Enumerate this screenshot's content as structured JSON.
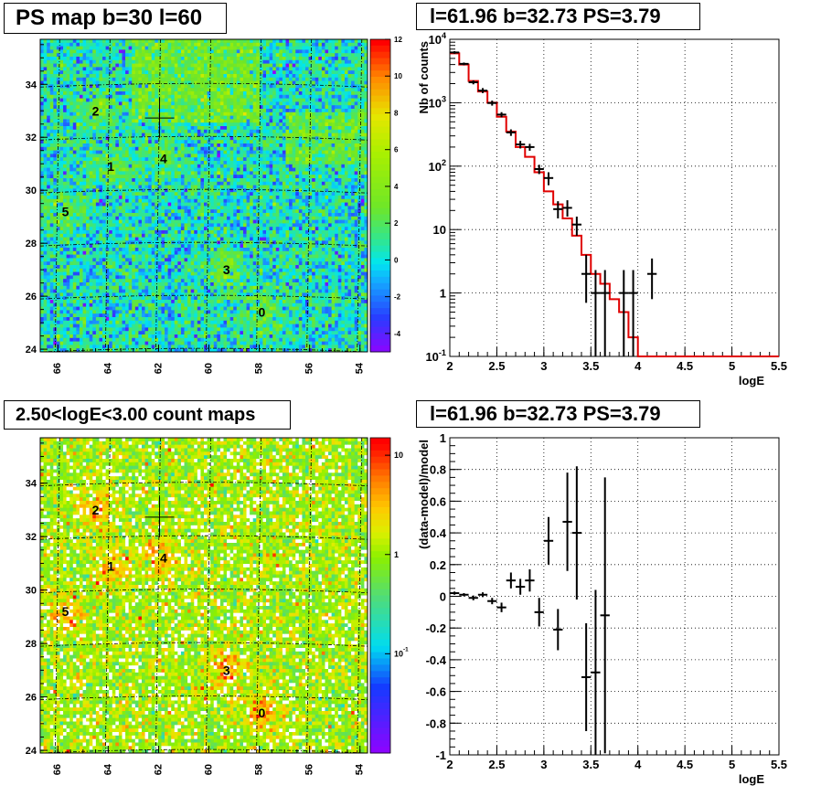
{
  "panels": {
    "ps_map": {
      "title": "PS map b=30 l=60"
    },
    "spectrum": {
      "title": "l=61.96 b=32.73 PS=3.79"
    },
    "count_map": {
      "title": "2.50<logE<3.00 count maps"
    },
    "residual": {
      "title": "l=61.96 b=32.73 PS=3.79"
    }
  },
  "chart_data": [
    {
      "type": "heatmap",
      "title": "PS map b=30 l=60",
      "x_ticks": [
        "66",
        "64",
        "62",
        "60",
        "58",
        "56",
        "54"
      ],
      "y_ticks": [
        "24",
        "26",
        "28",
        "30",
        "32",
        "34"
      ],
      "colorbar_ticks": [
        "12",
        "10",
        "8",
        "6",
        "4",
        "2",
        "0",
        "-2",
        "-4"
      ],
      "colorbar_range": [
        -5,
        12
      ],
      "sources": [
        {
          "label": "0",
          "l": 57.9,
          "b": 25.4
        },
        {
          "label": "1",
          "l": 63.9,
          "b": 30.9
        },
        {
          "label": "2",
          "l": 64.5,
          "b": 33.0
        },
        {
          "label": "3",
          "l": 59.3,
          "b": 27.0
        },
        {
          "label": "4",
          "l": 61.8,
          "b": 31.2
        },
        {
          "label": "5",
          "l": 65.7,
          "b": 29.2
        }
      ],
      "marker": {
        "l": 61.96,
        "b": 32.73
      }
    },
    {
      "type": "line",
      "title": "l=61.96 b=32.73 PS=3.79",
      "xlabel": "logE",
      "ylabel": "Nb of counts",
      "xlim": [
        2,
        5.5
      ],
      "ylim_log": [
        0.1,
        10000
      ],
      "log_y": true,
      "x_ticks": [
        "2",
        "2.5",
        "3",
        "3.5",
        "4",
        "4.5",
        "5",
        "5.5"
      ],
      "y_ticks": [
        "10^{-1}",
        "1",
        "10",
        "10^{2}",
        "10^{3}",
        "10^{4}"
      ],
      "series": [
        {
          "values": {
            "x": [
              2.05,
              2.15,
              2.25,
              2.35,
              2.45,
              2.55,
              2.65,
              2.75,
              2.85,
              2.95,
              3.05,
              3.15,
              3.25,
              3.35,
              3.45,
              3.55,
              3.65,
              3.75,
              3.85,
              3.95,
              4.05
            ],
            "y": [
              6000,
              4000,
              2200,
              1500,
              1000,
              600,
              350,
              200,
              140,
              80,
              40,
              25,
              15,
              8,
              4,
              2,
              1.4,
              0.8,
              0.5,
              0.2,
              0.1
            ]
          }
        }
      ],
      "data_points": {
        "x": [
          2.05,
          2.15,
          2.25,
          2.35,
          2.45,
          2.55,
          2.65,
          2.75,
          2.85,
          2.95,
          3.05,
          3.15,
          3.25,
          3.35,
          3.45,
          3.55,
          3.65,
          3.85,
          3.95,
          4.15
        ],
        "y": [
          6200,
          4100,
          2100,
          1550,
          990,
          650,
          340,
          220,
          200,
          90,
          65,
          21,
          22,
          12,
          2,
          1,
          1,
          1,
          1,
          2
        ],
        "y_low": [
          5900,
          3900,
          1950,
          1420,
          900,
          590,
          300,
          190,
          175,
          75,
          50,
          15,
          16,
          8,
          0.7,
          0.1,
          0.1,
          0.1,
          0.1,
          0.8
        ],
        "y_high": [
          6500,
          4300,
          2250,
          1700,
          1080,
          710,
          380,
          250,
          225,
          105,
          80,
          28,
          29,
          16,
          4,
          2.3,
          2.3,
          2.3,
          2.3,
          3.5
        ]
      }
    },
    {
      "type": "heatmap",
      "title": "2.50<logE<3.00 count maps",
      "x_ticks": [
        "66",
        "64",
        "62",
        "60",
        "58",
        "56",
        "54"
      ],
      "y_ticks": [
        "24",
        "26",
        "28",
        "30",
        "32",
        "34"
      ],
      "colorbar_ticks": [
        "10",
        "1",
        "10^{-1}"
      ],
      "colorbar_log": true,
      "colorbar_range": [
        0.01,
        15
      ],
      "sources": [
        {
          "label": "0",
          "l": 57.9,
          "b": 25.4
        },
        {
          "label": "1",
          "l": 63.9,
          "b": 30.9
        },
        {
          "label": "2",
          "l": 64.5,
          "b": 33.0
        },
        {
          "label": "3",
          "l": 59.3,
          "b": 27.0
        },
        {
          "label": "4",
          "l": 61.8,
          "b": 31.2
        },
        {
          "label": "5",
          "l": 65.7,
          "b": 29.2
        }
      ],
      "marker": {
        "l": 61.96,
        "b": 32.73
      }
    },
    {
      "type": "scatter",
      "title": "l=61.96 b=32.73 PS=3.79",
      "xlabel": "logE",
      "ylabel": "(data-model)/model",
      "xlim": [
        2,
        5.5
      ],
      "ylim": [
        -1,
        1
      ],
      "x_ticks": [
        "2",
        "2.5",
        "3",
        "3.5",
        "4",
        "4.5",
        "5",
        "5.5"
      ],
      "y_ticks": [
        "-1",
        "-0.8",
        "-0.6",
        "-0.4",
        "-0.2",
        "0",
        "0.2",
        "0.4",
        "0.6",
        "0.8",
        "1"
      ],
      "points": {
        "x": [
          2.05,
          2.15,
          2.25,
          2.35,
          2.45,
          2.55,
          2.65,
          2.75,
          2.85,
          2.95,
          3.05,
          3.15,
          3.25,
          3.35,
          3.45,
          3.55,
          3.65
        ],
        "y": [
          0.02,
          0.01,
          -0.01,
          0.01,
          -0.03,
          -0.07,
          0.1,
          0.06,
          0.1,
          -0.1,
          0.35,
          -0.21,
          0.47,
          0.4,
          -0.51,
          -0.48,
          -0.12
        ],
        "err": [
          0.01,
          0.01,
          0.015,
          0.015,
          0.02,
          0.03,
          0.05,
          0.05,
          0.07,
          0.09,
          0.15,
          0.13,
          0.31,
          0.42,
          0.34,
          0.52,
          0.87
        ]
      }
    }
  ]
}
